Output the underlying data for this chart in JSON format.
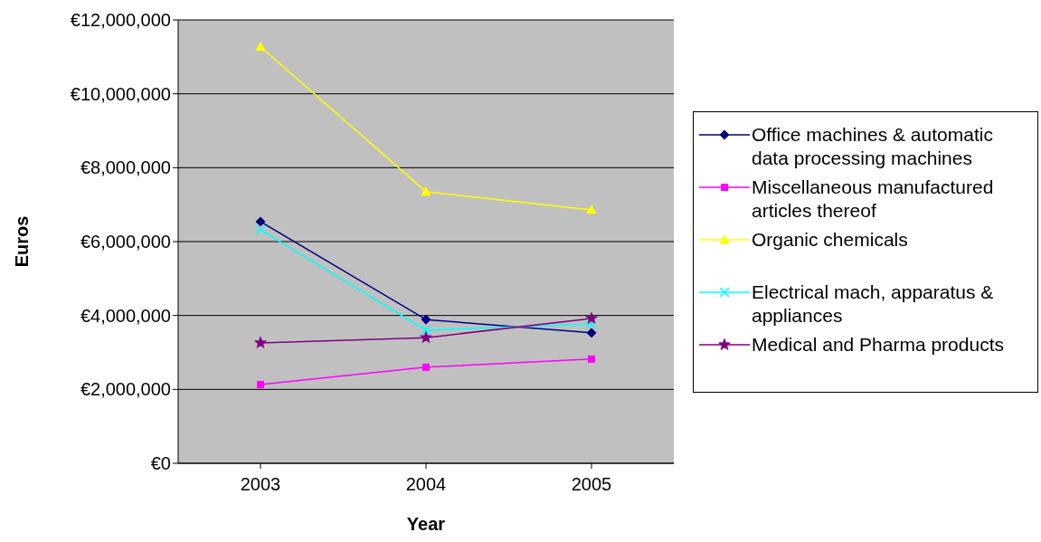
{
  "chart_data": {
    "type": "line",
    "xlabel": "Year",
    "ylabel": "Euros",
    "categories": [
      "2003",
      "2004",
      "2005"
    ],
    "series": [
      {
        "name": "Office machines & automatic data processing machines",
        "color": "#000080",
        "marker": "diamond",
        "values": [
          6540000,
          3890000,
          3530000
        ]
      },
      {
        "name": "Miscellaneous manufactured articles thereof",
        "color": "#ff00ff",
        "marker": "square",
        "values": [
          2130000,
          2600000,
          2820000
        ]
      },
      {
        "name": "Organic chemicals",
        "color": "#ffff00",
        "marker": "triangle",
        "values": [
          11270000,
          7350000,
          6860000
        ]
      },
      {
        "name": "Electrical mach, apparatus & appliances",
        "color": "#00ffff",
        "marker": "cross",
        "values": [
          6320000,
          3600000,
          3770000
        ]
      },
      {
        "name": "Medical and Pharma products",
        "color": "#800080",
        "marker": "star",
        "values": [
          3260000,
          3400000,
          3920000
        ]
      }
    ],
    "ylim": [
      0,
      12000000
    ],
    "yticks": [
      {
        "value": 0,
        "label": "€0"
      },
      {
        "value": 2000000,
        "label": "€2,000,000"
      },
      {
        "value": 4000000,
        "label": "€4,000,000"
      },
      {
        "value": 6000000,
        "label": "€6,000,000"
      },
      {
        "value": 8000000,
        "label": "€8,000,000"
      },
      {
        "value": 10000000,
        "label": "€10,000,000"
      },
      {
        "value": 12000000,
        "label": "€12,000,000"
      }
    ],
    "grid": "y",
    "legend": "right",
    "line_style": "solid"
  }
}
